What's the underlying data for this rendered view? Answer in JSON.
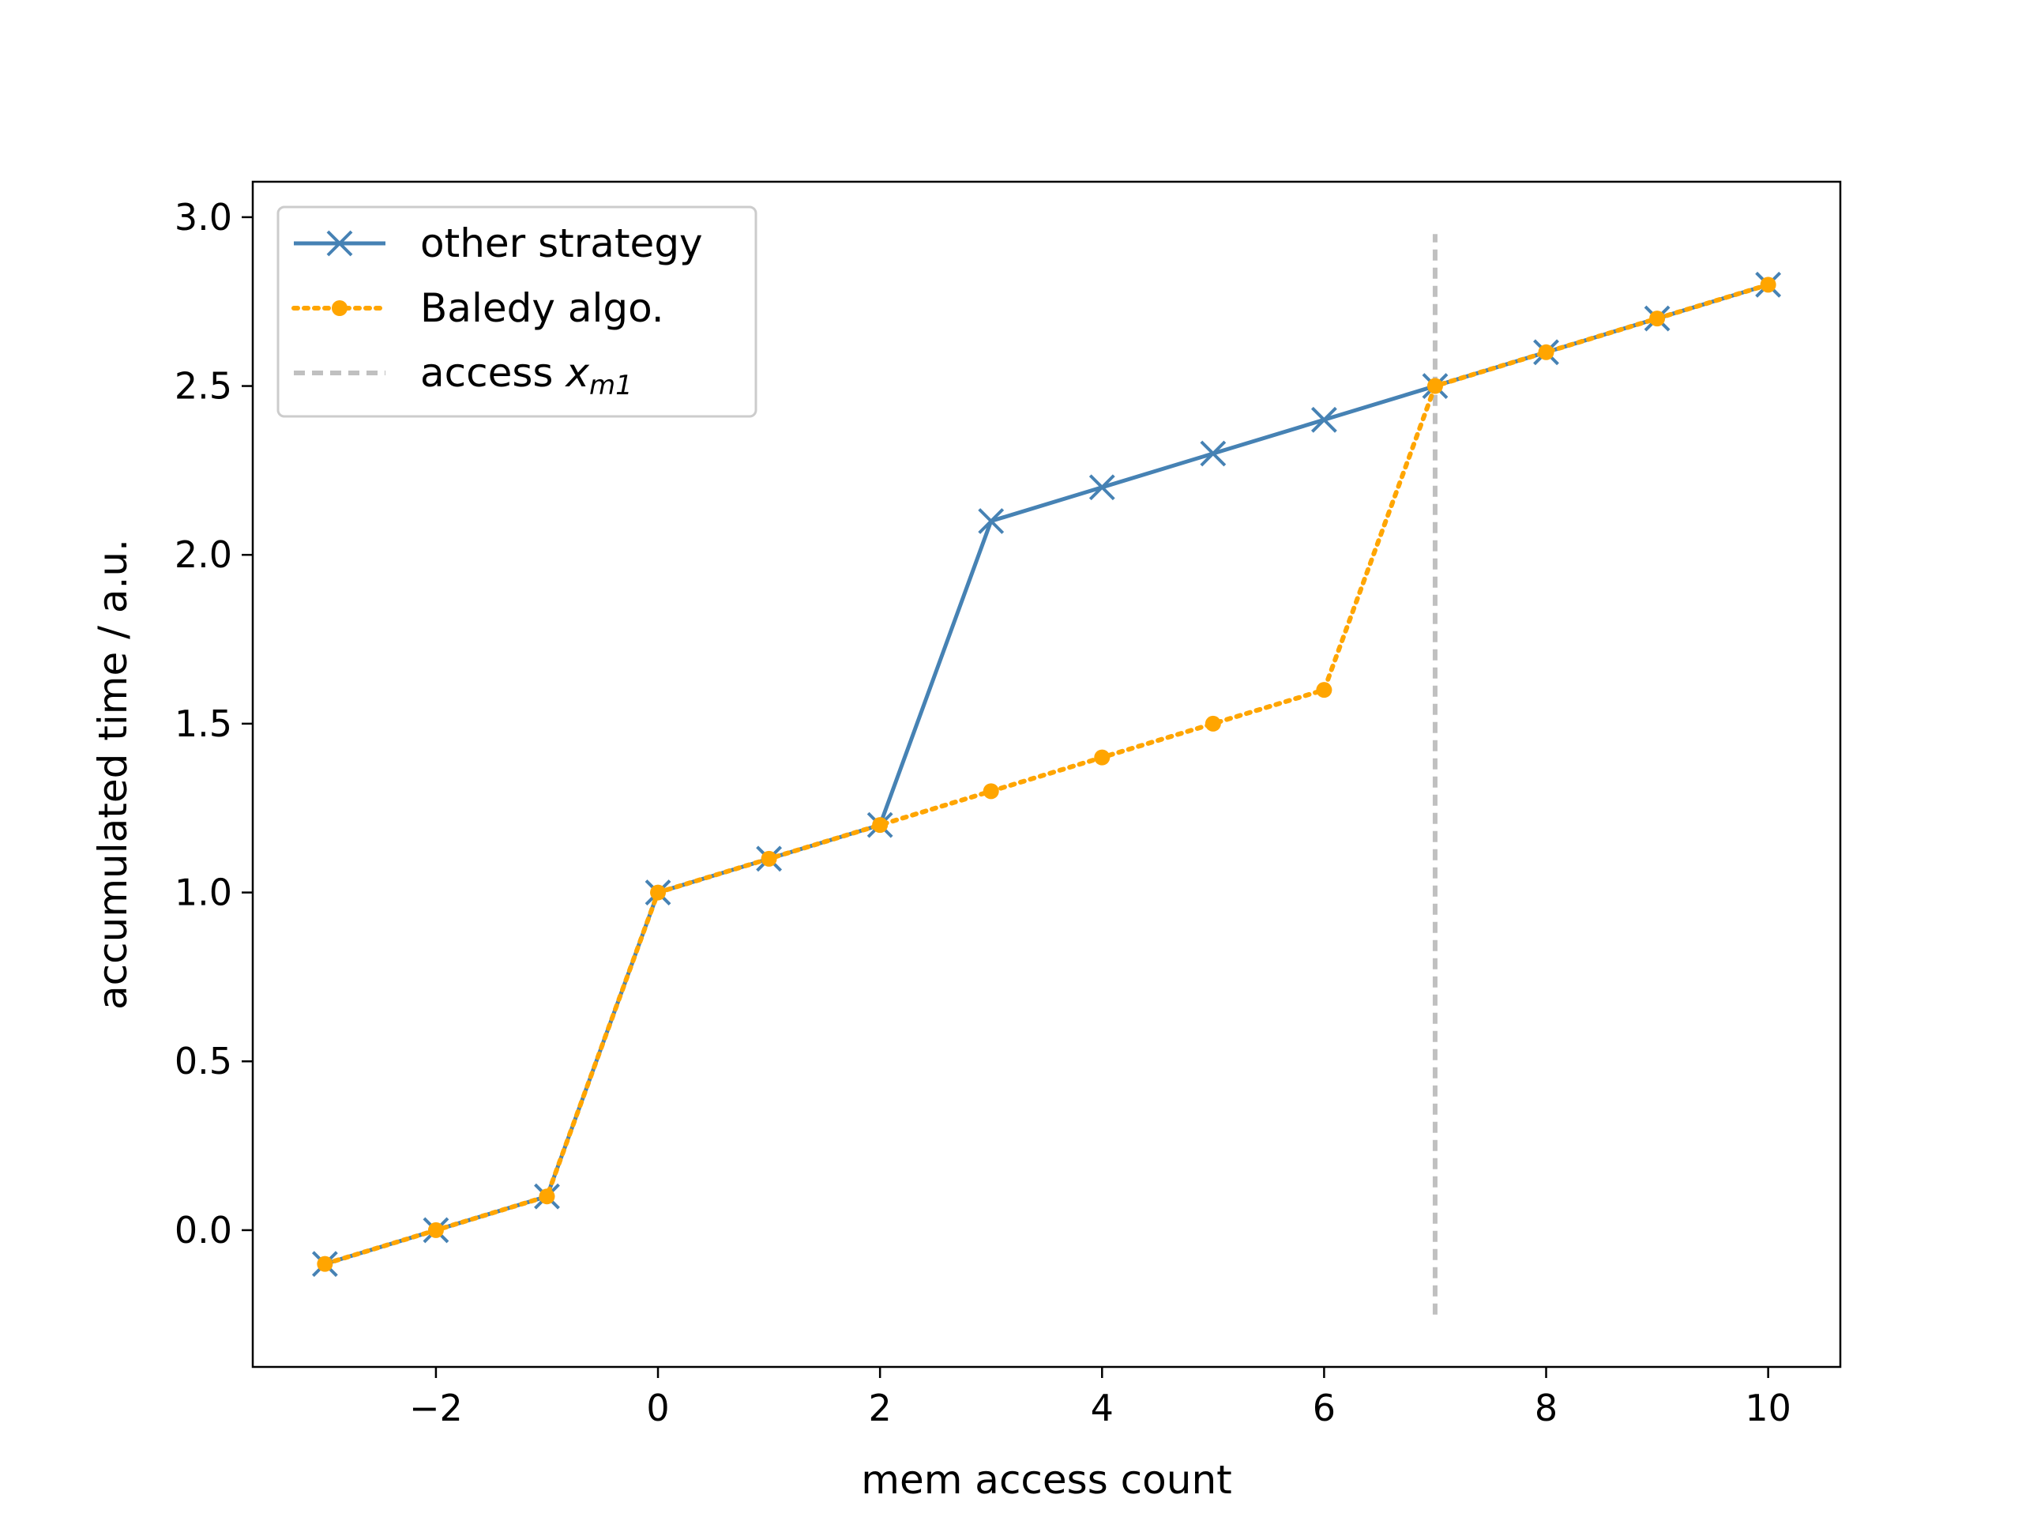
{
  "chart_data": {
    "type": "line",
    "title": "",
    "xlabel": "mem access count",
    "ylabel": "accumulated time / a.u.",
    "xlim": [
      -3.65,
      10.65
    ],
    "ylim": [
      -0.405,
      3.105
    ],
    "xticks": [
      -2,
      0,
      2,
      4,
      6,
      8,
      10
    ],
    "xtick_labels": [
      "−2",
      "0",
      "2",
      "4",
      "6",
      "8",
      "10"
    ],
    "yticks": [
      0.0,
      0.5,
      1.0,
      1.5,
      2.0,
      2.5,
      3.0
    ],
    "ytick_labels": [
      "0.0",
      "0.5",
      "1.0",
      "1.5",
      "2.0",
      "2.5",
      "3.0"
    ],
    "grid": false,
    "legend_position": "top-left",
    "x": [
      -3,
      -2,
      -1,
      0,
      1,
      2,
      3,
      4,
      5,
      6,
      7,
      8,
      9,
      10
    ],
    "series": [
      {
        "name": "other strategy",
        "color": "#4682b4",
        "line_style": "solid",
        "marker": "x",
        "values": [
          -0.1,
          0.0,
          0.1,
          1.0,
          1.1,
          1.2,
          2.1,
          2.2,
          2.3,
          2.4,
          2.5,
          2.6,
          2.7,
          2.8
        ]
      },
      {
        "name": "Baledy algo.",
        "color": "#ffa500",
        "line_style": "dotted",
        "marker": "dot",
        "values": [
          -0.1,
          0.0,
          0.1,
          1.0,
          1.1,
          1.2,
          1.3,
          1.4,
          1.5,
          1.6,
          2.5,
          2.6,
          2.7,
          2.8
        ]
      }
    ],
    "vline": {
      "legend_prefix": "access ",
      "legend_var": "x",
      "legend_sub": "m1",
      "x": 7,
      "ymin": -0.25,
      "ymax": 2.95,
      "color": "#c0c0c0",
      "line_style": "dashed"
    }
  }
}
